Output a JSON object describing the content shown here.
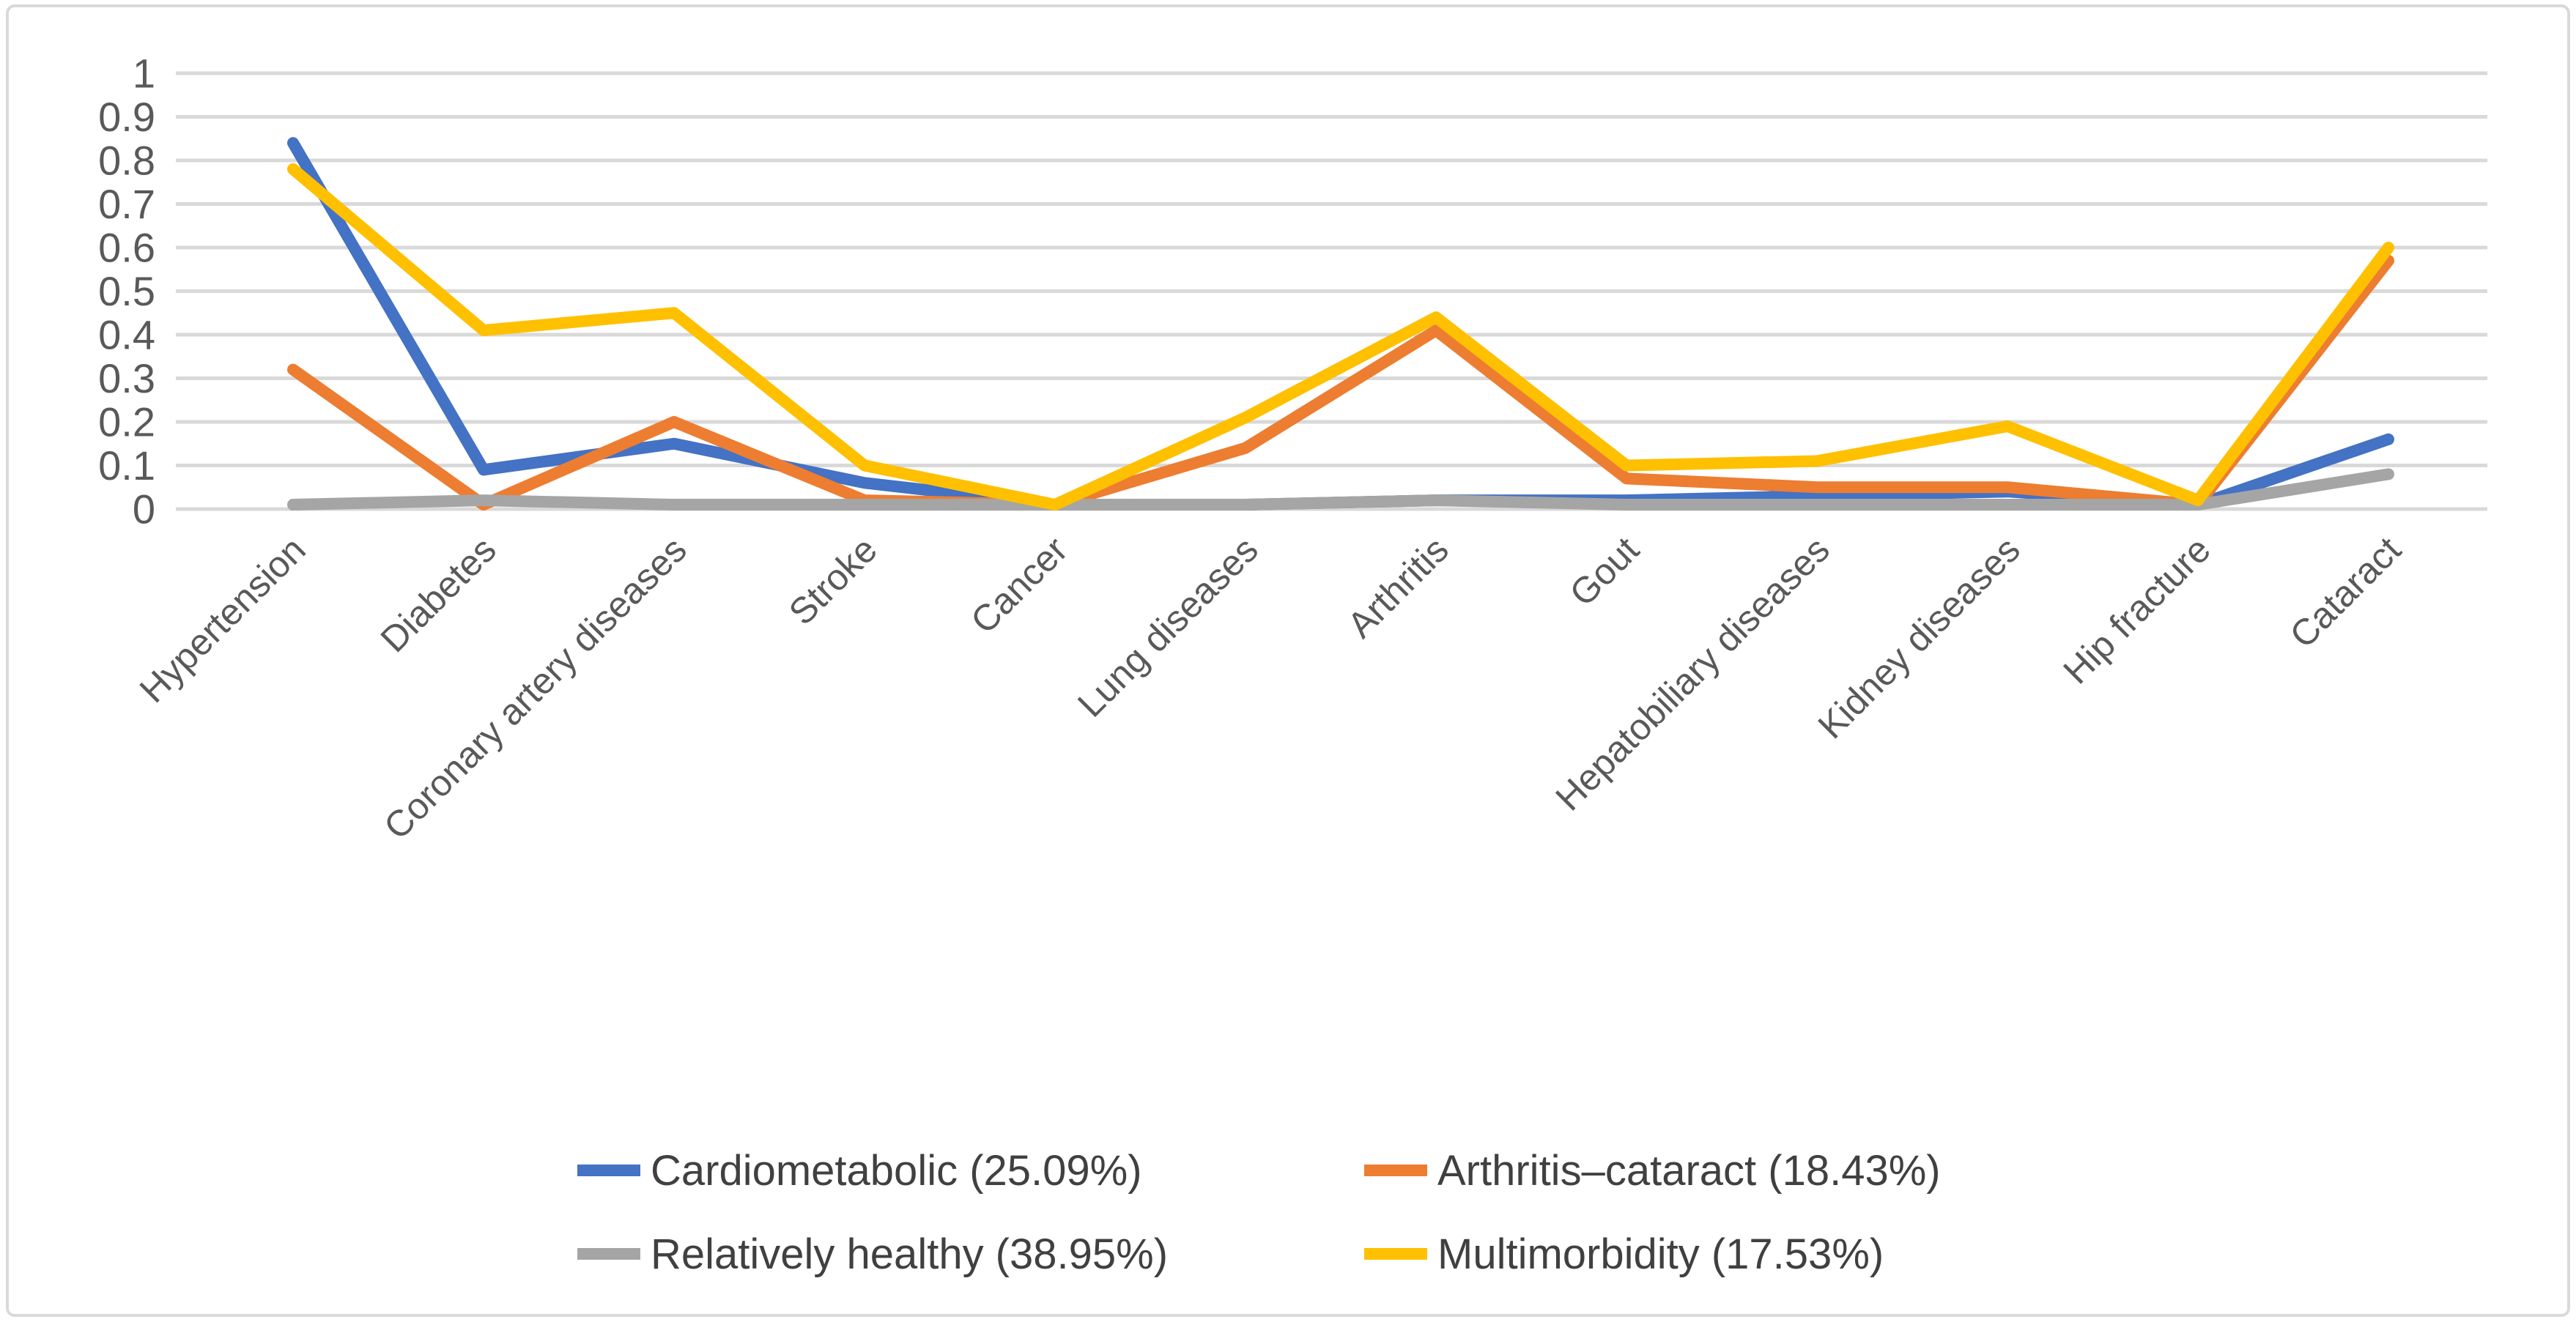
{
  "chart_data": {
    "type": "line",
    "title": "",
    "xlabel": "",
    "ylabel": "",
    "ylim": [
      0,
      1
    ],
    "grid": true,
    "legend_position": "bottom",
    "yticks": [
      "0",
      "0.1",
      "0.2",
      "0.3",
      "0.4",
      "0.5",
      "0.6",
      "0.7",
      "0.8",
      "0.9",
      "1"
    ],
    "categories": [
      "Hypertension",
      "Diabetes",
      "Coronary artery diseases",
      "Stroke",
      "Cancer",
      "Lung diseases",
      "Arthritis",
      "Gout",
      "Hepatobiliary diseases",
      "Kidney diseases",
      "Hip fracture",
      "Cataract"
    ],
    "series": [
      {
        "name": "Cardiometabolic (25.09%)",
        "color": "#4472C4",
        "values": [
          0.84,
          0.09,
          0.15,
          0.06,
          0.01,
          0.01,
          0.02,
          0.02,
          0.03,
          0.04,
          0.01,
          0.16
        ]
      },
      {
        "name": "Arthritis–cataract (18.43%)",
        "color": "#ED7D31",
        "values": [
          0.32,
          0.01,
          0.2,
          0.02,
          0.01,
          0.14,
          0.41,
          0.07,
          0.05,
          0.05,
          0.01,
          0.57
        ]
      },
      {
        "name": "Relatively healthy (38.95%)",
        "color": "#A5A5A5",
        "values": [
          0.01,
          0.02,
          0.01,
          0.01,
          0.01,
          0.01,
          0.02,
          0.01,
          0.01,
          0.01,
          0.01,
          0.08
        ]
      },
      {
        "name": "Multimorbidity (17.53%)",
        "color": "#FFC000",
        "values": [
          0.78,
          0.41,
          0.45,
          0.1,
          0.01,
          0.21,
          0.44,
          0.1,
          0.11,
          0.19,
          0.02,
          0.6
        ]
      }
    ],
    "legend_rows": [
      [
        0,
        1
      ],
      [
        2,
        3
      ]
    ],
    "colors": {
      "gridline": "#D9D9D9",
      "frame_border": "#D9D9D9",
      "tick_label": "#595959",
      "category_label": "#595959",
      "legend_label": "#404040",
      "background": "#FFFFFF"
    }
  }
}
